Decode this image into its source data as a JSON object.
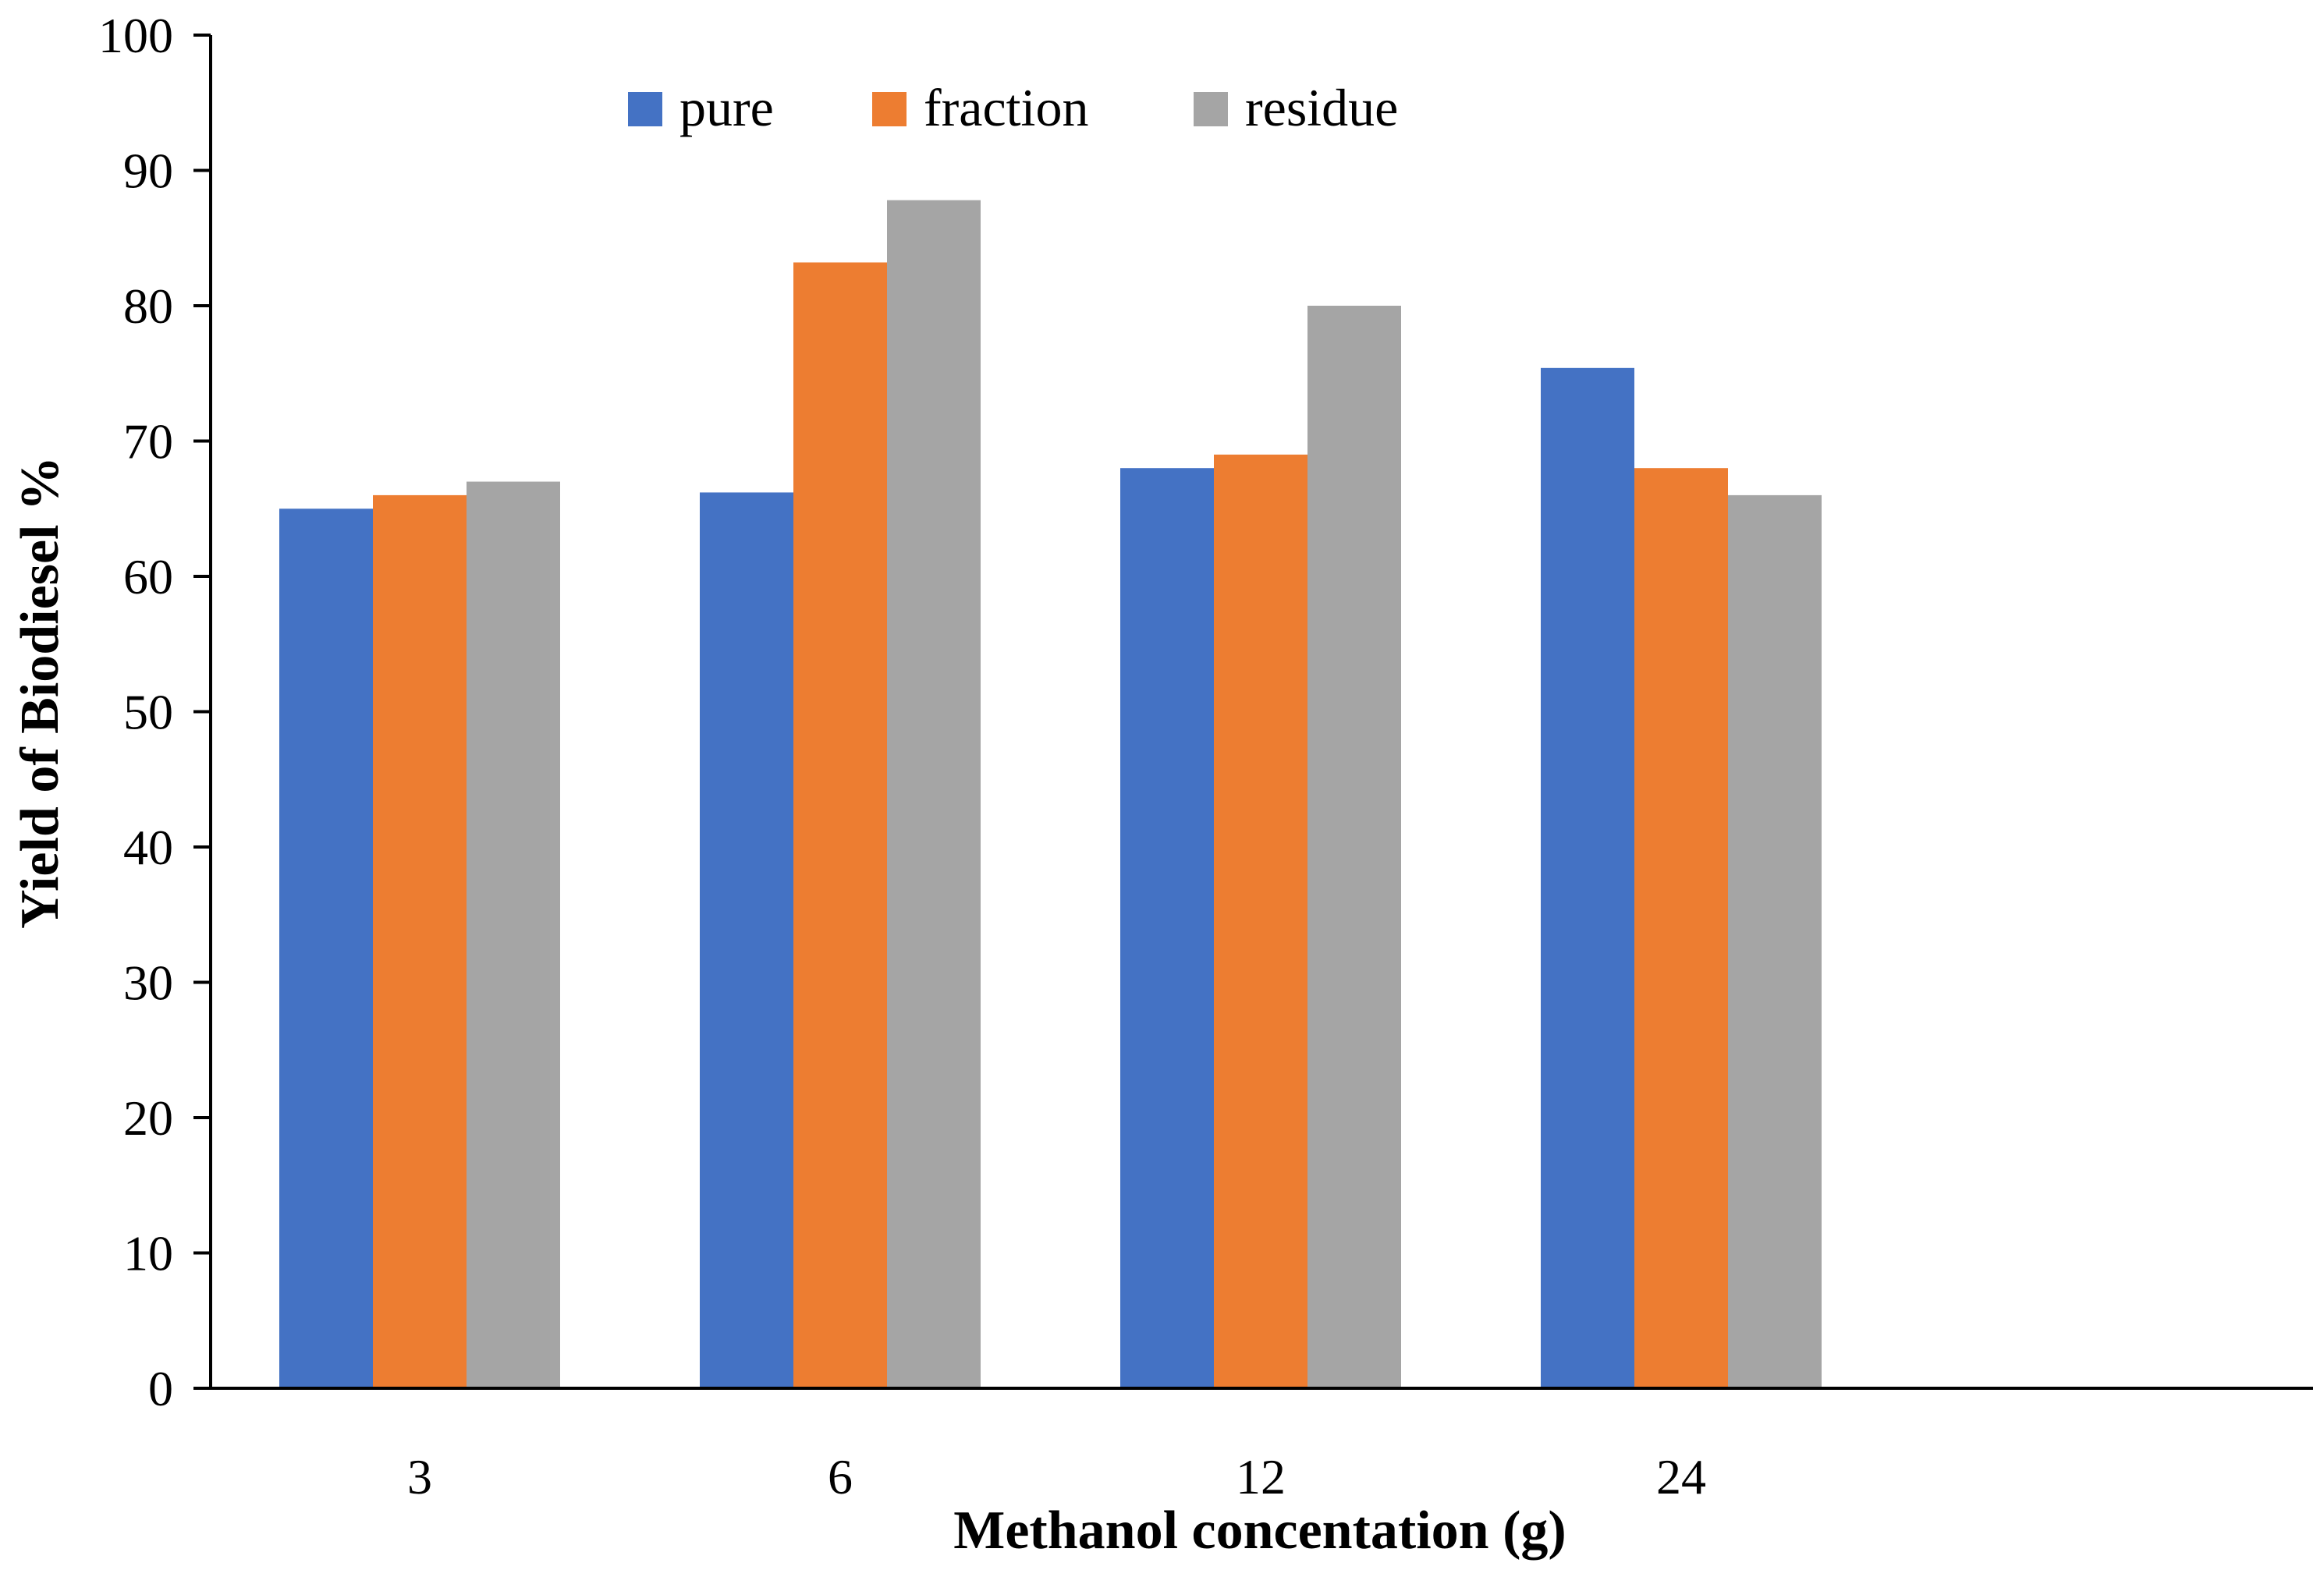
{
  "chart_data": {
    "type": "bar",
    "title": "",
    "xlabel": "Methanol concentation (g)",
    "ylabel": "Yield of Biodiesel %",
    "categories": [
      "3",
      "6",
      "12",
      "24"
    ],
    "series": [
      {
        "name": "pure",
        "color": "#4472C4",
        "values": [
          65,
          66.2,
          68,
          75.4
        ]
      },
      {
        "name": "fraction",
        "color": "#ED7D31",
        "values": [
          66,
          83.2,
          69,
          68
        ]
      },
      {
        "name": "residue",
        "color": "#A5A5A5",
        "values": [
          67,
          87.8,
          80,
          66
        ]
      }
    ],
    "ylim": [
      0,
      100
    ],
    "yticks": [
      0,
      10,
      20,
      30,
      40,
      50,
      60,
      70,
      80,
      90,
      100
    ],
    "grid": false,
    "legend_position": "top-center"
  }
}
